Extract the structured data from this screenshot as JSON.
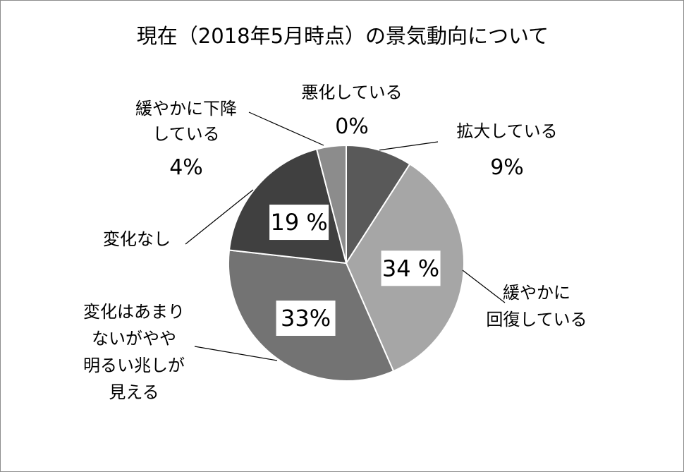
{
  "chart_data": {
    "type": "pie",
    "title": "現在（2018年5月時点）の景気動向について",
    "slices": [
      {
        "name": "拡大している",
        "value": 9,
        "value_label": "9%",
        "color": "#595959"
      },
      {
        "name": "緩やかに回復している",
        "name_lines": [
          "緩やかに",
          "回復している"
        ],
        "value": 34,
        "value_label": "34 %",
        "color": "#a6a6a6"
      },
      {
        "name": "変化はあまりないがやや明るい兆しが見える",
        "name_lines": [
          "変化はあまり",
          "ないがやや",
          "明るい兆しが",
          "見える"
        ],
        "value": 33,
        "value_label": "33%",
        "color": "#737373"
      },
      {
        "name": "変化なし",
        "value": 19,
        "value_label": "19 %",
        "color": "#404040"
      },
      {
        "name": "緩やかに下降している",
        "name_lines": [
          "緩やかに下降",
          "している"
        ],
        "value": 4,
        "value_label": "4%",
        "color": "#8c8c8c"
      },
      {
        "name": "悪化している",
        "value": 0,
        "value_label": "0%",
        "color": "#262626"
      }
    ],
    "legend": "none",
    "data_labels": "outside with leader lines"
  }
}
